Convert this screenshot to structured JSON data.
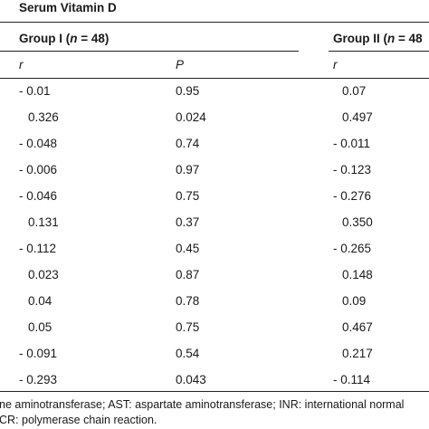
{
  "table": {
    "title": "Serum Vitamin D",
    "groups": [
      {
        "label_prefix": "Group I (",
        "n_label": "n",
        "label_suffix": " = 48)"
      },
      {
        "label_prefix": "Group II (",
        "n_label": "n",
        "label_suffix": " = 48"
      }
    ],
    "subheaders": [
      "r",
      "P",
      "r"
    ],
    "rows": [
      [
        "- 0.01",
        "0.95",
        "0.07"
      ],
      [
        "0.326",
        "0.024",
        "0.497"
      ],
      [
        "- 0.048",
        "0.74",
        "- 0.011"
      ],
      [
        "- 0.006",
        "0.97",
        "- 0.123"
      ],
      [
        "- 0.046",
        "0.75",
        "- 0.276"
      ],
      [
        "0.131",
        "0.37",
        "0.350"
      ],
      [
        "- 0.112",
        "0.45",
        "- 0.265"
      ],
      [
        "0.023",
        "0.87",
        "0.148"
      ],
      [
        "0.04",
        "0.78",
        "0.09"
      ],
      [
        "0.05",
        "0.75",
        "0.467"
      ],
      [
        "- 0.091",
        "0.54",
        "0.217"
      ],
      [
        "- 0.293",
        "0.043",
        "- 0.114"
      ]
    ]
  },
  "footnotes": [
    "ne aminotransferase; AST: aspartate aminotransferase; INR: international normal",
    "CR: polymerase chain reaction."
  ]
}
